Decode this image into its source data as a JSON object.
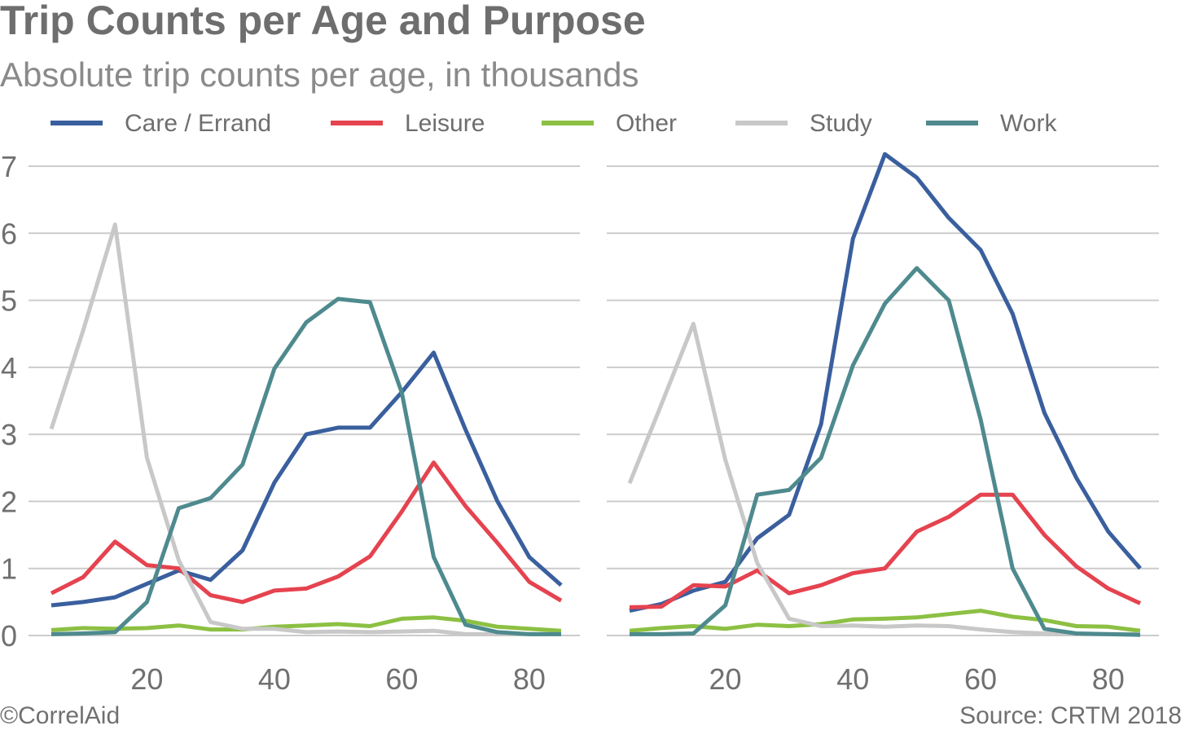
{
  "title": "Trip Counts per Age and Purpose",
  "subtitle": "Absolute trip counts per age, in thousands",
  "footer": {
    "left": "©CorrelAid",
    "right": "Source: CRTM 2018"
  },
  "colors": {
    "Care / Errand": "#3a5f9e",
    "Leisure": "#e5434f",
    "Other": "#8cc043",
    "Study": "#c8c8c8",
    "Work": "#4e8a8e"
  },
  "chart_data": [
    {
      "type": "line",
      "legend": "top",
      "grid": true,
      "ylim": [
        0,
        7
      ],
      "y_ticks": [
        "0",
        "1",
        "2",
        "3",
        "4",
        "5",
        "6",
        "7"
      ],
      "xlim": [
        5,
        85
      ],
      "x_ticks": [
        "20",
        "40",
        "60",
        "80"
      ],
      "x": [
        5,
        10,
        15,
        20,
        25,
        30,
        35,
        40,
        45,
        50,
        55,
        60,
        65,
        70,
        75,
        80,
        85
      ],
      "series": [
        {
          "name": "Care / Errand",
          "values": [
            0.45,
            0.5,
            0.57,
            0.77,
            0.97,
            0.83,
            1.27,
            2.28,
            3.0,
            3.1,
            3.1,
            3.63,
            4.22,
            3.07,
            2.0,
            1.17,
            0.75
          ]
        },
        {
          "name": "Leisure",
          "values": [
            0.63,
            0.87,
            1.4,
            1.05,
            1.0,
            0.6,
            0.5,
            0.67,
            0.7,
            0.88,
            1.18,
            1.85,
            2.58,
            1.93,
            1.38,
            0.8,
            0.52
          ]
        },
        {
          "name": "Other",
          "values": [
            0.08,
            0.11,
            0.1,
            0.11,
            0.15,
            0.09,
            0.09,
            0.13,
            0.15,
            0.17,
            0.14,
            0.25,
            0.27,
            0.22,
            0.13,
            0.1,
            0.07
          ]
        },
        {
          "name": "Study",
          "values": [
            3.08,
            4.55,
            6.13,
            2.65,
            1.12,
            0.2,
            0.1,
            0.1,
            0.05,
            0.06,
            0.05,
            0.06,
            0.07,
            0.02,
            0.02,
            0.02,
            0.02
          ]
        },
        {
          "name": "Work",
          "values": [
            0.02,
            0.03,
            0.05,
            0.5,
            1.9,
            2.05,
            2.55,
            3.98,
            4.67,
            5.02,
            4.97,
            3.62,
            1.17,
            0.16,
            0.05,
            0.02,
            0.02
          ]
        }
      ]
    },
    {
      "type": "line",
      "legend": "top",
      "grid": true,
      "ylim": [
        0,
        7
      ],
      "xlim": [
        5,
        85
      ],
      "x_ticks": [
        "20",
        "40",
        "60",
        "80"
      ],
      "x": [
        5,
        10,
        15,
        20,
        25,
        30,
        35,
        40,
        45,
        50,
        55,
        60,
        65,
        70,
        75,
        80,
        85
      ],
      "series": [
        {
          "name": "Care / Errand",
          "values": [
            0.37,
            0.47,
            0.67,
            0.8,
            1.45,
            1.8,
            3.15,
            5.92,
            7.18,
            6.83,
            6.23,
            5.75,
            4.8,
            3.32,
            2.35,
            1.55,
            1.0
          ]
        },
        {
          "name": "Leisure",
          "values": [
            0.42,
            0.43,
            0.75,
            0.73,
            0.97,
            0.63,
            0.75,
            0.93,
            1.0,
            1.55,
            1.77,
            2.1,
            2.1,
            1.5,
            1.03,
            0.7,
            0.48
          ]
        },
        {
          "name": "Other",
          "values": [
            0.07,
            0.11,
            0.14,
            0.1,
            0.16,
            0.14,
            0.17,
            0.24,
            0.25,
            0.27,
            0.32,
            0.37,
            0.28,
            0.23,
            0.14,
            0.13,
            0.07
          ]
        },
        {
          "name": "Study",
          "values": [
            2.27,
            3.45,
            4.65,
            2.62,
            1.08,
            0.25,
            0.14,
            0.15,
            0.13,
            0.15,
            0.14,
            0.09,
            0.05,
            0.03,
            0.02,
            0.02,
            0.02
          ]
        },
        {
          "name": "Work",
          "values": [
            0.02,
            0.02,
            0.03,
            0.45,
            2.1,
            2.17,
            2.65,
            4.03,
            4.95,
            5.48,
            5.0,
            3.22,
            1.0,
            0.1,
            0.03,
            0.02,
            0.01
          ]
        }
      ]
    }
  ]
}
